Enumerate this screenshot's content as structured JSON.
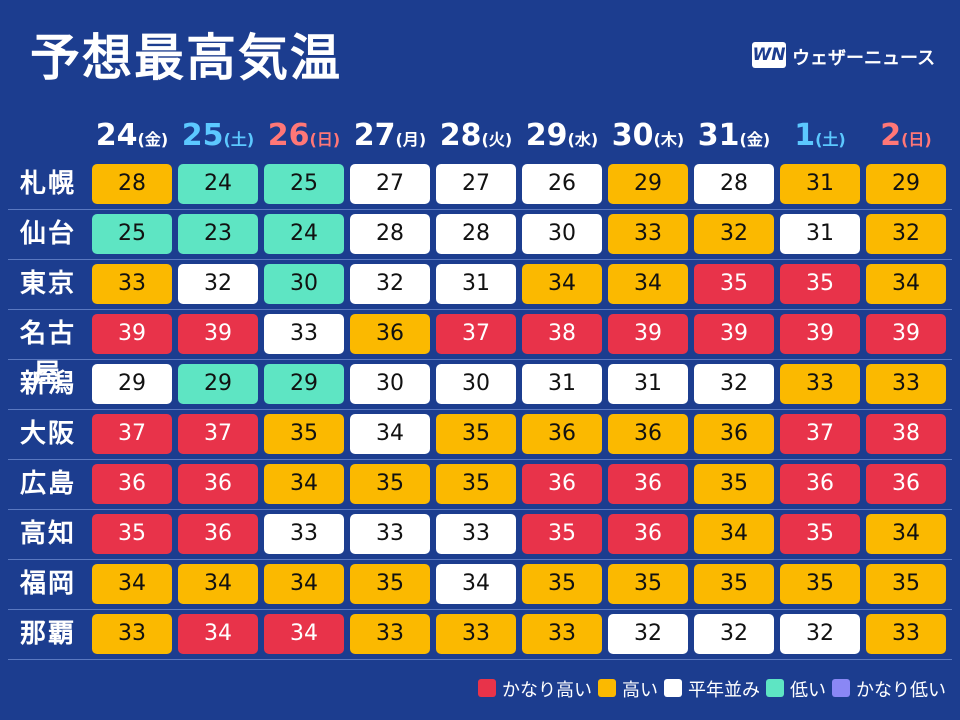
{
  "header": {
    "title": "予想最高気温",
    "logo": "WN",
    "brand": "ウェザーニュース"
  },
  "columns": [
    {
      "day": "24",
      "weekday": "(金)",
      "color": "#ffffff"
    },
    {
      "day": "25",
      "weekday": "(土)",
      "color": "#5cc8ff"
    },
    {
      "day": "26",
      "weekday": "(日)",
      "color": "#ff7777"
    },
    {
      "day": "27",
      "weekday": "(月)",
      "color": "#ffffff"
    },
    {
      "day": "28",
      "weekday": "(火)",
      "color": "#ffffff"
    },
    {
      "day": "29",
      "weekday": "(水)",
      "color": "#ffffff"
    },
    {
      "day": "30",
      "weekday": "(木)",
      "color": "#ffffff"
    },
    {
      "day": "31",
      "weekday": "(金)",
      "color": "#ffffff"
    },
    {
      "day": "1",
      "weekday": "(土)",
      "color": "#5cc8ff"
    },
    {
      "day": "2",
      "weekday": "(日)",
      "color": "#ff7777"
    }
  ],
  "legend": [
    {
      "label": "かなり高い",
      "color": "#e8334a",
      "text_color": "#ffffff"
    },
    {
      "label": "高い",
      "color": "#fbb900",
      "text_color": "#111111"
    },
    {
      "label": "平年並み",
      "color": "#ffffff",
      "text_color": "#111111"
    },
    {
      "label": "低い",
      "color": "#5ee5c3",
      "text_color": "#111111"
    },
    {
      "label": "かなり低い",
      "color": "#8a87f5",
      "text_color": "#111111"
    }
  ],
  "rows": [
    {
      "city": "札幌",
      "values": [
        28,
        24,
        25,
        27,
        27,
        26,
        29,
        28,
        31,
        29
      ],
      "levels": [
        1,
        3,
        3,
        2,
        2,
        2,
        1,
        2,
        1,
        1
      ]
    },
    {
      "city": "仙台",
      "values": [
        25,
        23,
        24,
        28,
        28,
        30,
        33,
        32,
        31,
        32
      ],
      "levels": [
        3,
        3,
        3,
        2,
        2,
        2,
        1,
        1,
        2,
        1
      ]
    },
    {
      "city": "東京",
      "values": [
        33,
        32,
        30,
        32,
        31,
        34,
        34,
        35,
        35,
        34
      ],
      "levels": [
        1,
        2,
        3,
        2,
        2,
        1,
        1,
        0,
        0,
        1
      ]
    },
    {
      "city": "名古屋",
      "values": [
        39,
        39,
        33,
        36,
        37,
        38,
        39,
        39,
        39,
        39
      ],
      "levels": [
        0,
        0,
        2,
        1,
        0,
        0,
        0,
        0,
        0,
        0
      ]
    },
    {
      "city": "新潟",
      "values": [
        29,
        29,
        29,
        30,
        30,
        31,
        31,
        32,
        33,
        33
      ],
      "levels": [
        2,
        3,
        3,
        2,
        2,
        2,
        2,
        2,
        1,
        1
      ]
    },
    {
      "city": "大阪",
      "values": [
        37,
        37,
        35,
        34,
        35,
        36,
        36,
        36,
        37,
        38
      ],
      "levels": [
        0,
        0,
        1,
        2,
        1,
        1,
        1,
        1,
        0,
        0
      ]
    },
    {
      "city": "広島",
      "values": [
        36,
        36,
        34,
        35,
        35,
        36,
        36,
        35,
        36,
        36
      ],
      "levels": [
        0,
        0,
        1,
        1,
        1,
        0,
        0,
        1,
        0,
        0
      ]
    },
    {
      "city": "高知",
      "values": [
        35,
        36,
        33,
        33,
        33,
        35,
        36,
        34,
        35,
        34
      ],
      "levels": [
        0,
        0,
        2,
        2,
        2,
        0,
        0,
        1,
        0,
        1
      ]
    },
    {
      "city": "福岡",
      "values": [
        34,
        34,
        34,
        35,
        34,
        35,
        35,
        35,
        35,
        35
      ],
      "levels": [
        1,
        1,
        1,
        1,
        2,
        1,
        1,
        1,
        1,
        1
      ]
    },
    {
      "city": "那覇",
      "values": [
        33,
        34,
        34,
        33,
        33,
        33,
        32,
        32,
        32,
        33
      ],
      "levels": [
        1,
        0,
        0,
        1,
        1,
        1,
        2,
        2,
        2,
        1
      ]
    }
  ]
}
